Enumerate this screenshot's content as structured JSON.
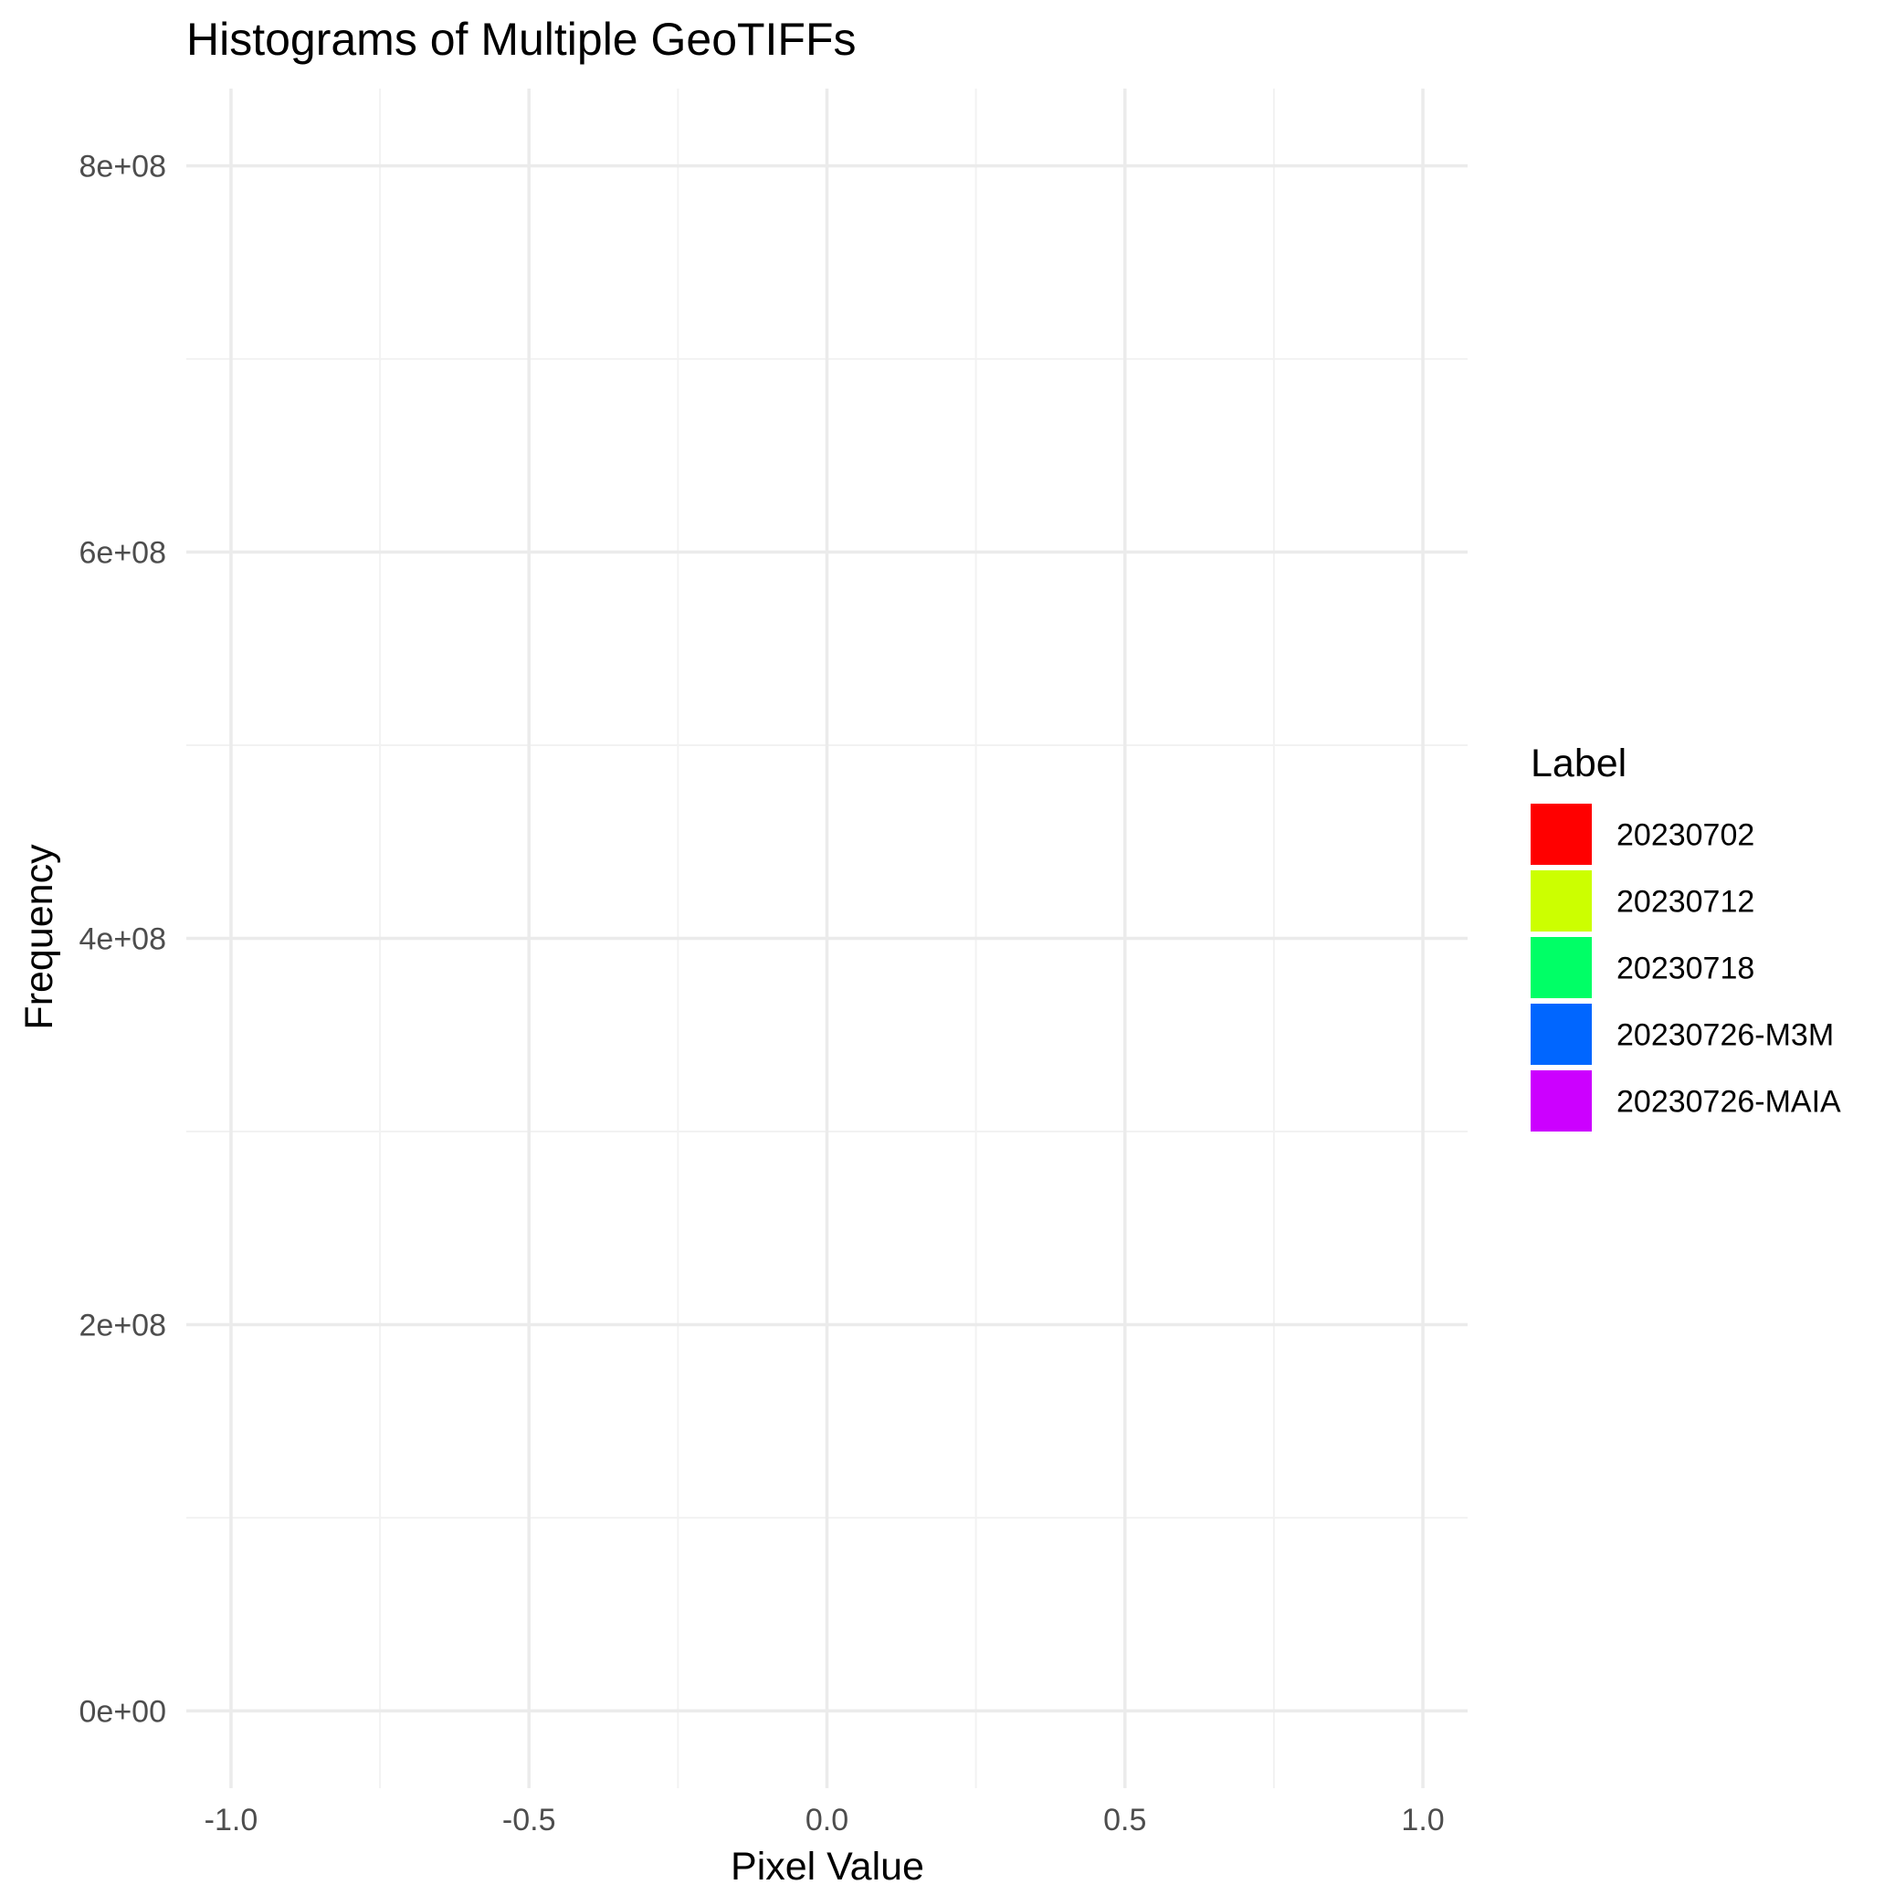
{
  "chart_data": {
    "type": "bar",
    "title": "Histograms of Multiple GeoTIFFs",
    "xlabel": "Pixel Value",
    "ylabel": "Frequency",
    "xlim": [
      -1.075,
      1.075
    ],
    "ylim": [
      -40000000,
      840000000
    ],
    "x_ticks": [
      {
        "value": -1.0,
        "label": "-1.0"
      },
      {
        "value": -0.5,
        "label": "-0.5"
      },
      {
        "value": 0.0,
        "label": "0.0"
      },
      {
        "value": 0.5,
        "label": "0.5"
      },
      {
        "value": 1.0,
        "label": "1.0"
      }
    ],
    "x_minor_ticks": [
      -0.75,
      -0.25,
      0.25,
      0.75
    ],
    "y_ticks": [
      {
        "value": 0,
        "label": "0e+00"
      },
      {
        "value": 200000000,
        "label": "2e+08"
      },
      {
        "value": 400000000,
        "label": "4e+08"
      },
      {
        "value": 600000000,
        "label": "6e+08"
      },
      {
        "value": 800000000,
        "label": "8e+08"
      }
    ],
    "y_minor_ticks": [
      100000000,
      300000000,
      500000000,
      700000000
    ],
    "grid": true,
    "legend": {
      "title": "Label",
      "position": "right"
    },
    "series": [
      {
        "name": "20230702",
        "color": "#ff0000",
        "values": []
      },
      {
        "name": "20230712",
        "color": "#ccff00",
        "values": []
      },
      {
        "name": "20230718",
        "color": "#00ff66",
        "values": []
      },
      {
        "name": "20230726-M3M",
        "color": "#0066ff",
        "values": []
      },
      {
        "name": "20230726-MAIA",
        "color": "#cc00ff",
        "values": []
      }
    ]
  }
}
